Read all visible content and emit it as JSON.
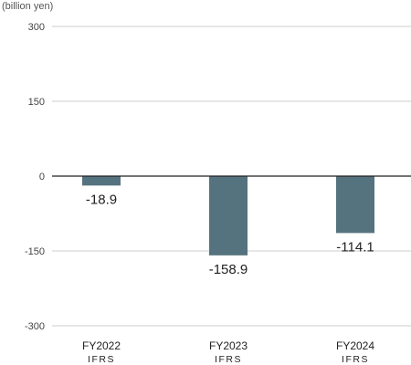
{
  "chart_data": {
    "type": "bar",
    "unit_label": "(billion yen)",
    "categories": [
      {
        "name": "FY2022",
        "sub": "IFRS"
      },
      {
        "name": "FY2023",
        "sub": "IFRS"
      },
      {
        "name": "FY2024",
        "sub": "IFRS"
      }
    ],
    "values": [
      -18.9,
      -158.9,
      -114.1
    ],
    "value_labels": [
      "-18.9",
      "-158.9",
      "-114.1"
    ],
    "yticks": [
      300,
      150,
      0,
      -150,
      -300
    ],
    "ytick_labels": [
      "300",
      "150",
      "0",
      "-150",
      "-300"
    ],
    "ylim": [
      -300,
      300
    ],
    "bar_color": "#55737e",
    "grid": true,
    "grid_color": "#cccccc",
    "zero_line_color": "#222222"
  }
}
